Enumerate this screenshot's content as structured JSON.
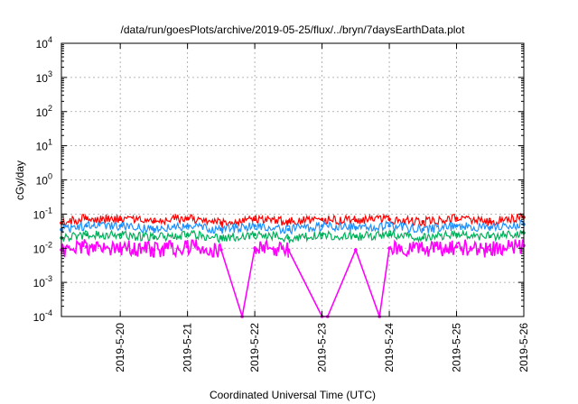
{
  "chart_data": {
    "type": "line",
    "title": "/data/run/goesPlots/archive/2019-05-25/flux/../bryn/7daysEarthData.plot",
    "xlabel": "Coordinated Universal Time (UTC)",
    "ylabel": "cGy/day",
    "yscale": "log",
    "ylim": [
      0.0001,
      10000
    ],
    "y_ticks": [
      {
        "value": 0.0001,
        "base": "10",
        "exp": "-4"
      },
      {
        "value": 0.001,
        "base": "10",
        "exp": "-3"
      },
      {
        "value": 0.01,
        "base": "10",
        "exp": "-2"
      },
      {
        "value": 0.1,
        "base": "10",
        "exp": "-1"
      },
      {
        "value": 1,
        "base": "10",
        "exp": "0"
      },
      {
        "value": 10,
        "base": "10",
        "exp": "1"
      },
      {
        "value": 100,
        "base": "10",
        "exp": "2"
      },
      {
        "value": 1000,
        "base": "10",
        "exp": "3"
      },
      {
        "value": 10000,
        "base": "10",
        "exp": "4"
      }
    ],
    "xlim": [
      "2019-05-19 03:00",
      "2019-05-26 00:00"
    ],
    "x_ticks": [
      "2019-5-20",
      "2019-5-21",
      "2019-5-22",
      "2019-5-23",
      "2019-5-24",
      "2019-5-25",
      "2019-5-26"
    ],
    "grid": true,
    "series_colors": [
      "#ff0000",
      "#1e90ff",
      "#00b05a",
      "#ff00ff"
    ],
    "series": [
      {
        "color": "#ff0000",
        "x": [
          "2019-05-19 03:00",
          "2019-05-19 12:00",
          "2019-05-20 00:00",
          "2019-05-20 12:00",
          "2019-05-21 00:00",
          "2019-05-21 12:00",
          "2019-05-22 00:00",
          "2019-05-22 12:00",
          "2019-05-23 00:00",
          "2019-05-23 12:00",
          "2019-05-24 00:00",
          "2019-05-24 12:00",
          "2019-05-25 00:00",
          "2019-05-25 12:00",
          "2019-05-26 00:00"
        ],
        "values": [
          0.055,
          0.075,
          0.07,
          0.06,
          0.075,
          0.055,
          0.07,
          0.06,
          0.07,
          0.065,
          0.07,
          0.06,
          0.075,
          0.06,
          0.08
        ]
      },
      {
        "color": "#1e90ff",
        "x": [
          "2019-05-19 03:00",
          "2019-05-19 12:00",
          "2019-05-20 00:00",
          "2019-05-20 12:00",
          "2019-05-21 00:00",
          "2019-05-21 12:00",
          "2019-05-22 00:00",
          "2019-05-22 12:00",
          "2019-05-23 00:00",
          "2019-05-23 12:00",
          "2019-05-24 00:00",
          "2019-05-24 12:00",
          "2019-05-25 00:00",
          "2019-05-25 12:00",
          "2019-05-26 00:00"
        ],
        "values": [
          0.035,
          0.045,
          0.045,
          0.035,
          0.045,
          0.035,
          0.045,
          0.035,
          0.045,
          0.04,
          0.045,
          0.035,
          0.045,
          0.04,
          0.05
        ]
      },
      {
        "color": "#00b05a",
        "x": [
          "2019-05-19 03:00",
          "2019-05-19 12:00",
          "2019-05-20 00:00",
          "2019-05-20 12:00",
          "2019-05-21 00:00",
          "2019-05-21 12:00",
          "2019-05-22 00:00",
          "2019-05-22 12:00",
          "2019-05-23 00:00",
          "2019-05-23 12:00",
          "2019-05-24 00:00",
          "2019-05-24 12:00",
          "2019-05-25 00:00",
          "2019-05-25 12:00",
          "2019-05-26 00:00"
        ],
        "values": [
          0.02,
          0.025,
          0.025,
          0.02,
          0.025,
          0.02,
          0.025,
          0.02,
          0.025,
          0.022,
          0.025,
          0.02,
          0.025,
          0.022,
          0.028
        ]
      },
      {
        "color": "#ff00ff",
        "x": [
          "2019-05-19 03:00",
          "2019-05-19 12:00",
          "2019-05-20 00:00",
          "2019-05-20 12:00",
          "2019-05-21 00:00",
          "2019-05-21 12:00",
          "2019-05-21 19:30",
          "2019-05-22 00:00",
          "2019-05-22 12:00",
          "2019-05-23 00:00",
          "2019-05-23 02:00",
          "2019-05-23 12:00",
          "2019-05-23 20:30",
          "2019-05-24 00:00",
          "2019-05-24 12:00",
          "2019-05-25 00:00",
          "2019-05-25 12:00",
          "2019-05-26 00:00"
        ],
        "values": [
          0.009,
          0.011,
          0.01,
          0.009,
          0.011,
          0.009,
          0.0001,
          0.01,
          0.009,
          0.0001,
          0.0001,
          0.009,
          0.0001,
          0.01,
          0.009,
          0.011,
          0.009,
          0.012
        ]
      }
    ]
  }
}
